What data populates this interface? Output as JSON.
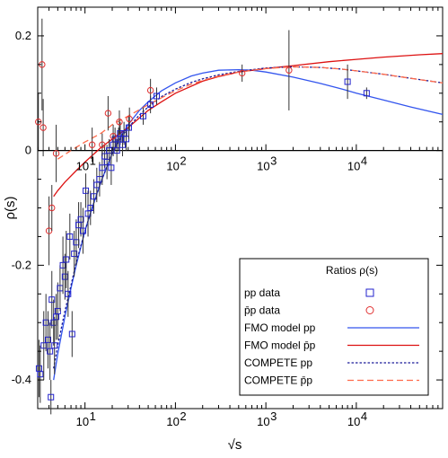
{
  "chart_data": {
    "type": "scatter",
    "title": "",
    "xlabel": "√s",
    "ylabel": "ρ(s)",
    "xscale": "log",
    "xlim": [
      3,
      90000
    ],
    "ylim": [
      -0.45,
      0.25
    ],
    "grid": false,
    "legend_placement": "bottom-right",
    "x_ticks": [
      {
        "value": 10,
        "base": "10",
        "exp": "1"
      },
      {
        "value": 100,
        "base": "10",
        "exp": "2"
      },
      {
        "value": 1000,
        "base": "10",
        "exp": "3"
      },
      {
        "value": 10000,
        "base": "10",
        "exp": "4"
      }
    ],
    "y_ticks": [
      {
        "value": 0.2,
        "label": "0.2"
      },
      {
        "value": 0,
        "label": "0"
      },
      {
        "value": -0.2,
        "label": "-0.2"
      },
      {
        "value": -0.4,
        "label": "-0.4"
      }
    ],
    "legend": {
      "title": "Ratios ρ(s)",
      "entries": [
        {
          "label": "pp data",
          "symbol": "square",
          "color": "#2222cc"
        },
        {
          "label": "p̄p data",
          "symbol": "circle",
          "color": "#e03030"
        },
        {
          "label": "FMO model  pp",
          "symbol": "solid",
          "color": "#3355ee"
        },
        {
          "label": "FMO model  p̄p",
          "symbol": "solid",
          "color": "#dd1111"
        },
        {
          "label": "COMPETE    pp",
          "symbol": "dotted",
          "color": "#1a1a99"
        },
        {
          "label": "COMPETE    p̄p",
          "symbol": "dashed",
          "color": "#ff6a4a"
        }
      ]
    },
    "series": [
      {
        "name": "pp data",
        "marker": "square",
        "color": "#2222cc",
        "points": [
          {
            "x": 3.1,
            "y": -0.38,
            "err": 0.05
          },
          {
            "x": 3.2,
            "y": -0.39,
            "err": 0.05
          },
          {
            "x": 3.5,
            "y": -0.34,
            "err": 0.06
          },
          {
            "x": 3.7,
            "y": -0.3,
            "err": 0.05
          },
          {
            "x": 3.9,
            "y": -0.33,
            "err": 0.05
          },
          {
            "x": 4.1,
            "y": -0.35,
            "err": 0.05
          },
          {
            "x": 4.2,
            "y": -0.43,
            "err": 0.03
          },
          {
            "x": 4.3,
            "y": -0.26,
            "err": 0.05
          },
          {
            "x": 4.5,
            "y": -0.3,
            "err": 0.04
          },
          {
            "x": 4.6,
            "y": -0.34,
            "err": 0.05
          },
          {
            "x": 4.8,
            "y": -0.29,
            "err": 0.04
          },
          {
            "x": 5.0,
            "y": -0.28,
            "err": 0.05
          },
          {
            "x": 5.3,
            "y": -0.24,
            "err": 0.04
          },
          {
            "x": 5.7,
            "y": -0.2,
            "err": 0.05
          },
          {
            "x": 6.0,
            "y": -0.22,
            "err": 0.04
          },
          {
            "x": 6.2,
            "y": -0.19,
            "err": 0.05
          },
          {
            "x": 6.5,
            "y": -0.25,
            "err": 0.04
          },
          {
            "x": 6.8,
            "y": -0.15,
            "err": 0.04
          },
          {
            "x": 7.2,
            "y": -0.32,
            "err": 0.04
          },
          {
            "x": 7.6,
            "y": -0.18,
            "err": 0.04
          },
          {
            "x": 8.0,
            "y": -0.16,
            "err": 0.04
          },
          {
            "x": 8.5,
            "y": -0.13,
            "err": 0.04
          },
          {
            "x": 9.0,
            "y": -0.12,
            "err": 0.03
          },
          {
            "x": 9.5,
            "y": -0.14,
            "err": 0.04
          },
          {
            "x": 10.2,
            "y": -0.07,
            "err": 0.03
          },
          {
            "x": 10.8,
            "y": -0.11,
            "err": 0.04
          },
          {
            "x": 11.5,
            "y": -0.1,
            "err": 0.03
          },
          {
            "x": 12.5,
            "y": -0.08,
            "err": 0.03
          },
          {
            "x": 13.5,
            "y": -0.06,
            "err": 0.03
          },
          {
            "x": 14.5,
            "y": -0.05,
            "err": 0.03
          },
          {
            "x": 15.5,
            "y": -0.03,
            "err": 0.03
          },
          {
            "x": 16.5,
            "y": -0.01,
            "err": 0.02
          },
          {
            "x": 17.5,
            "y": -0.02,
            "err": 0.03
          },
          {
            "x": 18.5,
            "y": 0.0,
            "err": 0.02
          },
          {
            "x": 19.5,
            "y": -0.03,
            "err": 0.03
          },
          {
            "x": 20.5,
            "y": 0.01,
            "err": 0.02
          },
          {
            "x": 21.5,
            "y": 0.02,
            "err": 0.02
          },
          {
            "x": 22.5,
            "y": 0.0,
            "err": 0.02
          },
          {
            "x": 23.5,
            "y": 0.02,
            "err": 0.02
          },
          {
            "x": 24.5,
            "y": 0.03,
            "err": 0.02
          },
          {
            "x": 26.0,
            "y": 0.01,
            "err": 0.02
          },
          {
            "x": 27.0,
            "y": 0.03,
            "err": 0.02
          },
          {
            "x": 28.5,
            "y": 0.02,
            "err": 0.02
          },
          {
            "x": 30.5,
            "y": 0.04,
            "err": 0.02
          },
          {
            "x": 44.0,
            "y": 0.06,
            "err": 0.015
          },
          {
            "x": 53.0,
            "y": 0.08,
            "err": 0.015
          },
          {
            "x": 62.0,
            "y": 0.095,
            "err": 0.015
          },
          {
            "x": 8000,
            "y": 0.12,
            "err": 0.03
          },
          {
            "x": 13000,
            "y": 0.1,
            "err": 0.01
          }
        ]
      },
      {
        "name": "p̄p data",
        "marker": "circle",
        "color": "#e03030",
        "points": [
          {
            "x": 3.05,
            "y": 0.05,
            "err": 0.05
          },
          {
            "x": 3.35,
            "y": 0.15,
            "err": 0.08
          },
          {
            "x": 3.45,
            "y": 0.04,
            "err": 0.05
          },
          {
            "x": 4.0,
            "y": -0.14,
            "err": 0.06
          },
          {
            "x": 4.3,
            "y": -0.1,
            "err": 0.04
          },
          {
            "x": 4.8,
            "y": -0.005,
            "err": 0.05
          },
          {
            "x": 12.0,
            "y": 0.01,
            "err": 0.03
          },
          {
            "x": 15.5,
            "y": 0.01,
            "err": 0.02
          },
          {
            "x": 18.0,
            "y": 0.065,
            "err": 0.03
          },
          {
            "x": 20.5,
            "y": 0.025,
            "err": 0.02
          },
          {
            "x": 24.0,
            "y": 0.05,
            "err": 0.02
          },
          {
            "x": 31.0,
            "y": 0.055,
            "err": 0.02
          },
          {
            "x": 53.0,
            "y": 0.105,
            "err": 0.02
          },
          {
            "x": 546,
            "y": 0.135,
            "err": 0.015
          },
          {
            "x": 1800,
            "y": 0.14,
            "err": 0.07
          }
        ]
      }
    ],
    "curves": [
      {
        "name": "FMO model  pp",
        "style": "solid",
        "color": "#3355ee",
        "points": [
          [
            4.5,
            -0.4
          ],
          [
            5,
            -0.355
          ],
          [
            6,
            -0.29
          ],
          [
            7,
            -0.24
          ],
          [
            8,
            -0.2
          ],
          [
            10,
            -0.14
          ],
          [
            12,
            -0.1
          ],
          [
            15,
            -0.055
          ],
          [
            20,
            -0.005
          ],
          [
            25,
            0.025
          ],
          [
            30,
            0.045
          ],
          [
            40,
            0.07
          ],
          [
            50,
            0.085
          ],
          [
            70,
            0.104
          ],
          [
            100,
            0.118
          ],
          [
            150,
            0.13
          ],
          [
            200,
            0.135
          ],
          [
            300,
            0.14
          ],
          [
            500,
            0.141
          ],
          [
            700,
            0.14
          ],
          [
            1000,
            0.137
          ],
          [
            2000,
            0.128
          ],
          [
            4000,
            0.117
          ],
          [
            7000,
            0.107
          ],
          [
            10000,
            0.1
          ],
          [
            20000,
            0.088
          ],
          [
            40000,
            0.076
          ],
          [
            90000,
            0.063
          ]
        ]
      },
      {
        "name": "FMO model  p̄p",
        "style": "solid",
        "color": "#dd1111",
        "points": [
          [
            4.5,
            -0.08
          ],
          [
            5,
            -0.07
          ],
          [
            6,
            -0.055
          ],
          [
            8,
            -0.035
          ],
          [
            10,
            -0.02
          ],
          [
            15,
            0.005
          ],
          [
            20,
            0.02
          ],
          [
            30,
            0.04
          ],
          [
            50,
            0.07
          ],
          [
            70,
            0.085
          ],
          [
            100,
            0.1
          ],
          [
            200,
            0.121
          ],
          [
            300,
            0.129
          ],
          [
            500,
            0.137
          ],
          [
            1000,
            0.143
          ],
          [
            2000,
            0.148
          ],
          [
            5000,
            0.155
          ],
          [
            10000,
            0.159
          ],
          [
            20000,
            0.163
          ],
          [
            50000,
            0.167
          ],
          [
            90000,
            0.169
          ]
        ]
      },
      {
        "name": "COMPETE    pp",
        "style": "dotted",
        "color": "#1a1a99",
        "points": [
          [
            4.5,
            -0.38
          ],
          [
            5,
            -0.34
          ],
          [
            6,
            -0.28
          ],
          [
            7,
            -0.235
          ],
          [
            8,
            -0.195
          ],
          [
            10,
            -0.14
          ],
          [
            12,
            -0.1
          ],
          [
            15,
            -0.055
          ],
          [
            20,
            -0.005
          ],
          [
            25,
            0.022
          ],
          [
            30,
            0.04
          ],
          [
            40,
            0.062
          ],
          [
            50,
            0.076
          ],
          [
            70,
            0.094
          ],
          [
            100,
            0.107
          ],
          [
            150,
            0.119
          ],
          [
            200,
            0.125
          ],
          [
            300,
            0.132
          ],
          [
            500,
            0.138
          ],
          [
            1000,
            0.144
          ],
          [
            2000,
            0.146
          ],
          [
            4000,
            0.145
          ],
          [
            7000,
            0.142
          ],
          [
            10000,
            0.139
          ],
          [
            20000,
            0.133
          ],
          [
            40000,
            0.126
          ],
          [
            90000,
            0.118
          ]
        ]
      },
      {
        "name": "COMPETE    p̄p",
        "style": "dashed",
        "color": "#ff6a4a",
        "points": [
          [
            5,
            -0.015
          ],
          [
            7,
            0.0
          ],
          [
            10,
            0.015
          ],
          [
            15,
            0.03
          ],
          [
            20,
            0.045
          ],
          [
            30,
            0.06
          ],
          [
            50,
            0.08
          ],
          [
            70,
            0.092
          ],
          [
            100,
            0.104
          ],
          [
            150,
            0.116
          ],
          [
            200,
            0.122
          ],
          [
            300,
            0.13
          ],
          [
            500,
            0.137
          ],
          [
            1000,
            0.143
          ],
          [
            2000,
            0.146
          ],
          [
            4000,
            0.145
          ],
          [
            7000,
            0.142
          ],
          [
            10000,
            0.139
          ],
          [
            20000,
            0.133
          ],
          [
            40000,
            0.126
          ],
          [
            90000,
            0.118
          ]
        ]
      }
    ]
  }
}
